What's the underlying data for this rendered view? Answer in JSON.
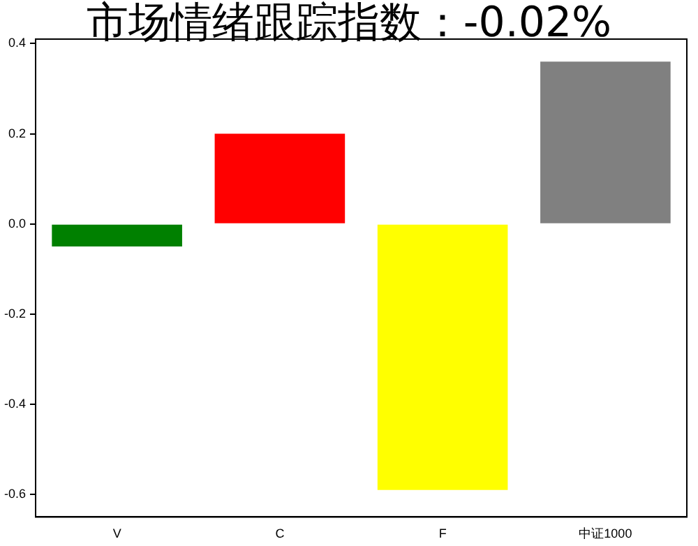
{
  "chart_data": {
    "type": "bar",
    "title": "市场情绪跟踪指数：-0.02%",
    "categories": [
      "V",
      "C",
      "F",
      "中证1000"
    ],
    "values": [
      -0.05,
      0.2,
      -0.59,
      0.36
    ],
    "colors": [
      "#008000",
      "#ff0000",
      "#ffff00",
      "#808080"
    ],
    "ylim": [
      -0.65,
      0.41
    ],
    "yticks": [
      -0.6,
      -0.4,
      -0.2,
      {
        "value": 0,
        "label": "0.0"
      },
      0.2,
      0.4
    ],
    "grid": false,
    "legend": false
  }
}
